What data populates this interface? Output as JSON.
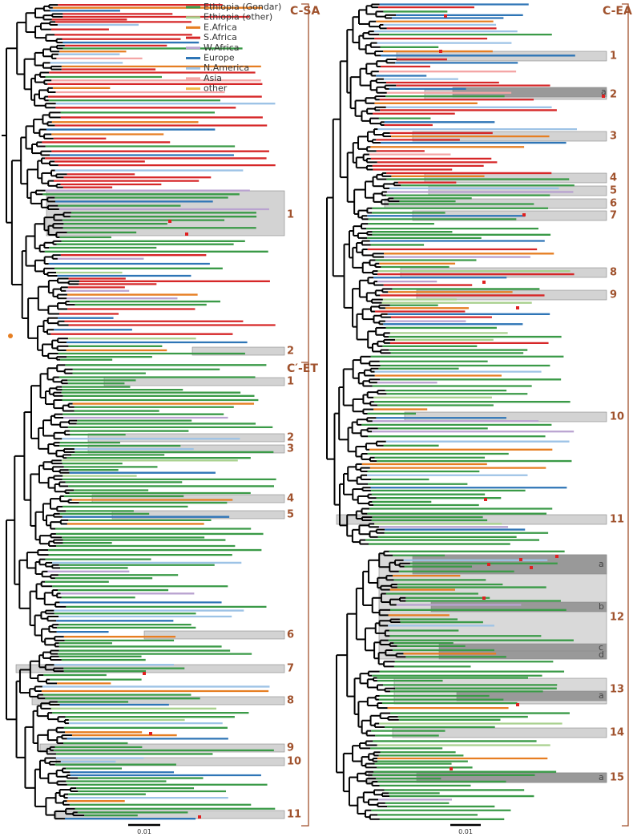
{
  "legend": [
    {
      "label": "Ethiopia (Gondar)",
      "color": "#3a9a47"
    },
    {
      "label": "Ethiopia (other)",
      "color": "#a9d18e"
    },
    {
      "label": "E.Africa",
      "color": "#e67e22"
    },
    {
      "label": "S.Africa",
      "color": "#d62728"
    },
    {
      "label": "W.Africa",
      "color": "#b9a3d0"
    },
    {
      "label": "Europe",
      "color": "#2e75b6"
    },
    {
      "label": "N.America",
      "color": "#9dc3e6"
    },
    {
      "label": "Asia",
      "color": "#f4a6a6"
    },
    {
      "label": "other",
      "color": "#f0b94a"
    }
  ],
  "left": {
    "clades": [
      {
        "name": "C-SA",
        "groups": [
          "1",
          "2"
        ]
      },
      {
        "name": "C′-ET",
        "groups": [
          "1",
          "2",
          "3",
          "4",
          "5",
          "6",
          "7",
          "8",
          "9",
          "10",
          "11"
        ]
      }
    ],
    "scale": "0.01"
  },
  "right": {
    "clades": [
      {
        "name": "C-EA",
        "groups": [
          "1",
          "2",
          "3",
          "4",
          "5",
          "6",
          "7",
          "8",
          "9",
          "10",
          "11",
          "12",
          "13",
          "14",
          "15"
        ]
      }
    ],
    "subgroups": [
      "a",
      "a",
      "b",
      "c",
      "d",
      "a",
      "a"
    ],
    "scale": "0.01"
  }
}
